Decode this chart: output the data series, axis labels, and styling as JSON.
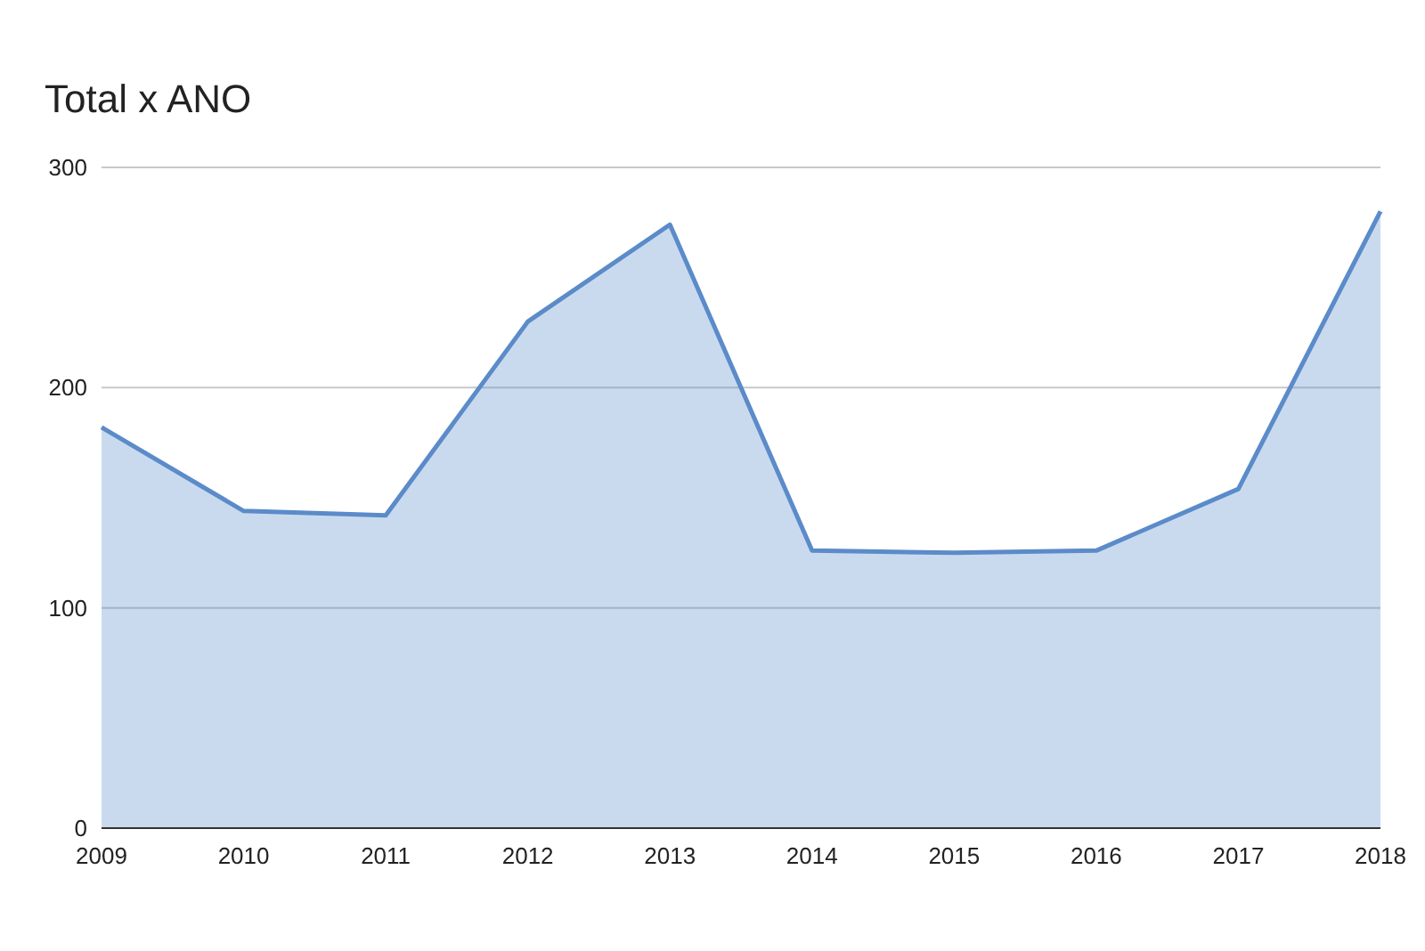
{
  "chart_data": {
    "type": "area",
    "title": "Total x ANO",
    "categories": [
      "2009",
      "2010",
      "2011",
      "2012",
      "2013",
      "2014",
      "2015",
      "2016",
      "2017",
      "2018"
    ],
    "series": [
      {
        "color": "#5b8bc9",
        "values": [
          182,
          144,
          142,
          230,
          274,
          126,
          125,
          126,
          154,
          280
        ]
      }
    ],
    "ylim": [
      0,
      300
    ],
    "yticks": [
      0,
      100,
      200,
      300
    ],
    "grid": "y"
  }
}
